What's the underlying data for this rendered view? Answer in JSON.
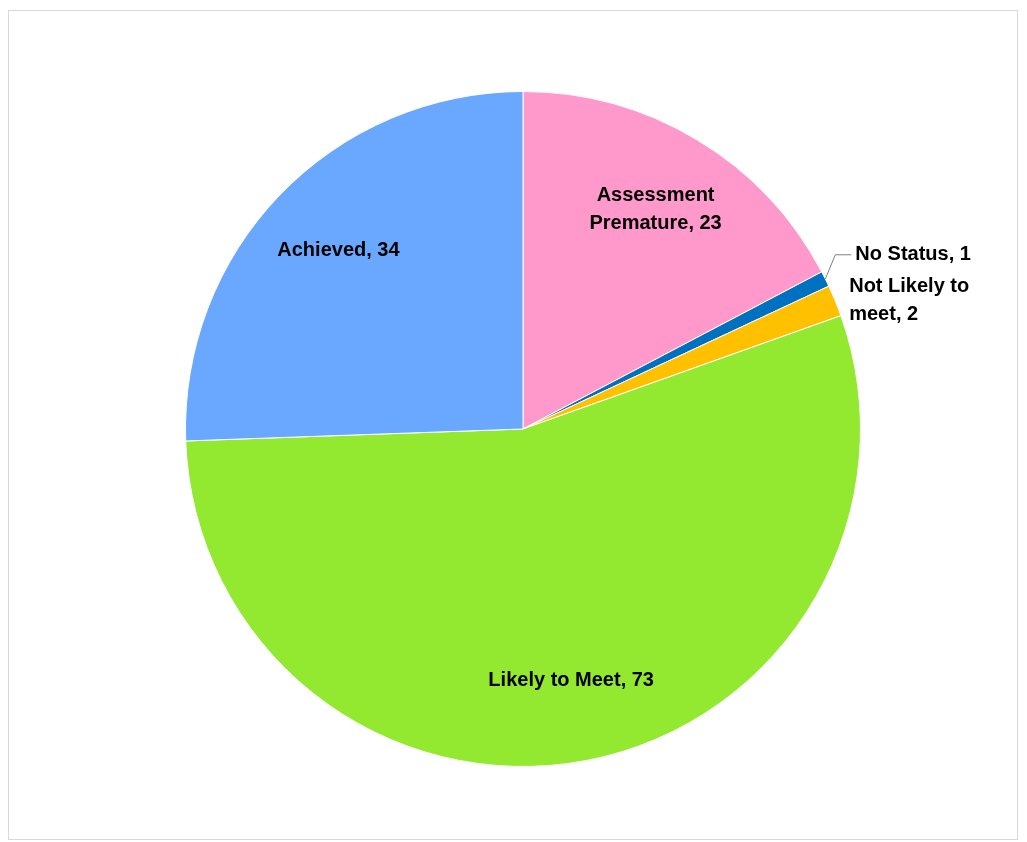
{
  "chart_data": {
    "type": "pie",
    "categories": [
      "Assessment Premature",
      "No Status",
      "Not Likely to meet",
      "Likely to Meet",
      "Achieved"
    ],
    "values": [
      23,
      1,
      2,
      73,
      34
    ],
    "colors": [
      "#ff99cc",
      "#0070c0",
      "#ffc000",
      "#92e92f",
      "#6aa8ff"
    ],
    "value_labels": [
      ", 23",
      ", 1",
      ", 2",
      ", 73",
      ", 34"
    ],
    "legend": false
  }
}
